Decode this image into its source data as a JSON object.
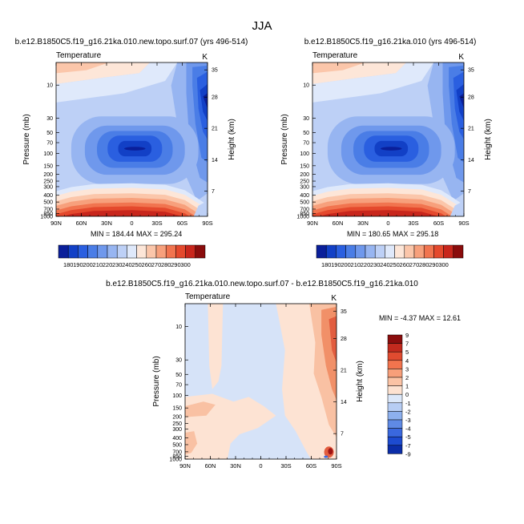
{
  "figure_title": "JJA",
  "chart_data": [
    {
      "type": "contour",
      "id": "p1",
      "title": "b.e12.B1850C5.f19_g16.21ka.010.new.topo.surf.07 (yrs 496-514)",
      "left_label": "Temperature",
      "right_label": "K",
      "xlabel": "",
      "ylabel": "Pressure (mb)",
      "y2label": "Height (km)",
      "x_ticks": [
        "90N",
        "60N",
        "30N",
        "0",
        "30S",
        "60S",
        "90S"
      ],
      "p_ticks": [
        "10",
        "30",
        "50",
        "70",
        "100",
        "150",
        "200",
        "250",
        "300",
        "400",
        "500",
        "700",
        "850",
        "1000"
      ],
      "h_ticks": [
        "7",
        "14",
        "21",
        "28",
        "35"
      ],
      "min_label": "MIN = 184.44",
      "max_label": "MAX = 295.24",
      "colorbar_labels": [
        "180",
        "190",
        "200",
        "210",
        "220",
        "230",
        "240",
        "250",
        "260",
        "270",
        "280",
        "290",
        "300"
      ]
    },
    {
      "type": "contour",
      "id": "p2",
      "title": "b.e12.B1850C5.f19_g16.21ka.010 (yrs 496-514)",
      "left_label": "Temperature",
      "right_label": "K",
      "xlabel": "",
      "ylabel": "Pressure (mb)",
      "y2label": "Height (km)",
      "x_ticks": [
        "90N",
        "60N",
        "30N",
        "0",
        "30S",
        "60S",
        "90S"
      ],
      "p_ticks": [
        "10",
        "30",
        "50",
        "70",
        "100",
        "150",
        "200",
        "250",
        "300",
        "400",
        "500",
        "700",
        "850",
        "1000"
      ],
      "h_ticks": [
        "7",
        "14",
        "21",
        "28",
        "35"
      ],
      "min_label": "MIN = 180.65",
      "max_label": "MAX = 295.18",
      "colorbar_labels": [
        "180",
        "190",
        "200",
        "210",
        "220",
        "230",
        "240",
        "250",
        "260",
        "270",
        "280",
        "290",
        "300"
      ]
    },
    {
      "type": "contour",
      "id": "p3",
      "title": "b.e12.B1850C5.f19_g16.21ka.010.new.topo.surf.07 - b.e12.B1850C5.f19_g16.21ka.010",
      "left_label": "Temperature",
      "right_label": "K",
      "xlabel": "",
      "ylabel": "Pressure (mb)",
      "y2label": "Height (km)",
      "x_ticks": [
        "90N",
        "60N",
        "30N",
        "0",
        "30S",
        "60S",
        "90S"
      ],
      "p_ticks": [
        "10",
        "30",
        "50",
        "70",
        "100",
        "150",
        "200",
        "250",
        "300",
        "400",
        "500",
        "700",
        "850",
        "1000"
      ],
      "h_ticks": [
        "7",
        "14",
        "21",
        "28",
        "35"
      ],
      "minmax_label": "MIN = -4.37  MAX = 12.61",
      "colorbar_labels": [
        "9",
        "7",
        "5",
        "4",
        "3",
        "2",
        "1",
        "0",
        "-1",
        "-2",
        "-3",
        "-4",
        "-5",
        "-7",
        "-9"
      ]
    }
  ],
  "colors": {
    "abs_palette": [
      "#0a1f9a",
      "#1240c6",
      "#2a5fe0",
      "#4a7de6",
      "#6f98ec",
      "#97b5f1",
      "#bdd0f6",
      "#dfe9fb",
      "#fde6d8",
      "#fbc6aa",
      "#f7a07c",
      "#f1744f",
      "#e4492d",
      "#c8261c",
      "#8a0c0c"
    ],
    "diff_palette": [
      "#d6e3f8",
      "#fde3d3",
      "#f9c1a3",
      "#f19068",
      "#e25d3f",
      "#cc3322",
      "#9e1414"
    ],
    "diff_bar": [
      "#8b0d0d",
      "#c22a1e",
      "#e04b30",
      "#f2744e",
      "#f79f7a",
      "#fbc3a5",
      "#fde2d1",
      "#dce8fa",
      "#b7cdf4",
      "#8db0ee",
      "#5f8ae5",
      "#3a68de",
      "#1d4bd0",
      "#0b2da8"
    ]
  }
}
